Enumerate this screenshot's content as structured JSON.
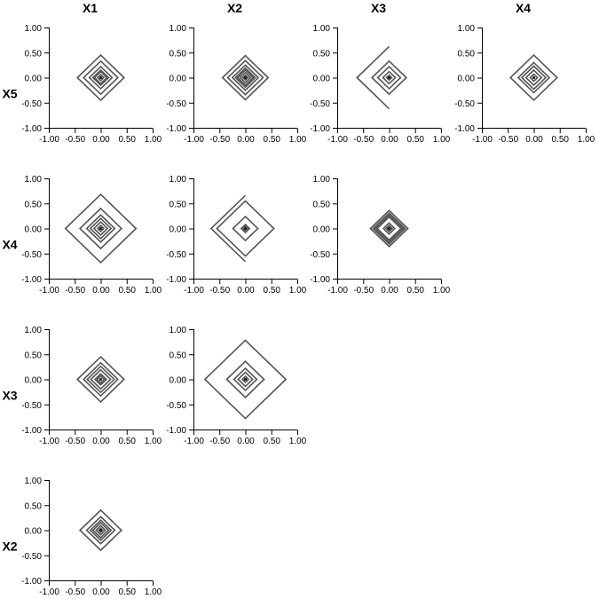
{
  "chart_data": {
    "type": "line",
    "title": "",
    "column_labels": [
      "X1",
      "X2",
      "X3",
      "X4"
    ],
    "row_labels": [
      "X5",
      "X4",
      "X3",
      "X2"
    ],
    "xlim": [
      -1,
      1
    ],
    "ylim": [
      -1,
      1
    ],
    "x_ticks": [
      "-1.00",
      "-0.50",
      "0.00",
      "0.50",
      "1.00"
    ],
    "y_ticks": [
      "1.00",
      "0.50",
      "0.00",
      "-0.50",
      "-1.00"
    ],
    "line_color": "#555555",
    "panels": [
      {
        "row": "X5",
        "col": "X1",
        "rings": [
          0.45,
          0.33,
          0.22,
          0.15,
          0.12,
          0.06
        ]
      },
      {
        "row": "X5",
        "col": "X2",
        "rings": [
          0.44,
          0.34,
          0.25,
          0.19,
          0.15,
          0.1,
          0.05
        ]
      },
      {
        "row": "X5",
        "col": "X3",
        "rings": [
          0.33,
          0.22,
          0.12,
          0.05
        ],
        "outer_arm": [
          [
            0.0,
            0.62
          ],
          [
            -0.62,
            0.0
          ],
          [
            0.0,
            -0.62
          ]
        ]
      },
      {
        "row": "X5",
        "col": "X4",
        "rings": [
          0.45,
          0.3,
          0.23,
          0.15,
          0.07
        ]
      },
      {
        "row": "X4",
        "col": "X1",
        "rings": [
          0.68,
          0.4,
          0.27,
          0.2,
          0.13,
          0.06
        ]
      },
      {
        "row": "X4",
        "col": "X2",
        "rings": [
          0.55,
          0.24,
          0.08,
          0.04
        ],
        "outer_arm": [
          [
            0.0,
            0.66
          ],
          [
            -0.66,
            0.0
          ],
          [
            0.0,
            -0.66
          ]
        ]
      },
      {
        "row": "X4",
        "col": "X3",
        "rings": [
          0.36,
          0.31,
          0.27,
          0.23,
          0.11,
          0.06,
          0.04
        ]
      },
      {
        "row": "X3",
        "col": "X1",
        "rings": [
          0.45,
          0.33,
          0.26,
          0.19,
          0.11,
          0.07
        ]
      },
      {
        "row": "X3",
        "col": "X2",
        "rings": [
          0.78,
          0.36,
          0.22,
          0.14,
          0.06
        ]
      },
      {
        "row": "X2",
        "col": "X1",
        "rings": [
          0.4,
          0.27,
          0.2,
          0.15,
          0.09,
          0.04
        ]
      }
    ]
  }
}
